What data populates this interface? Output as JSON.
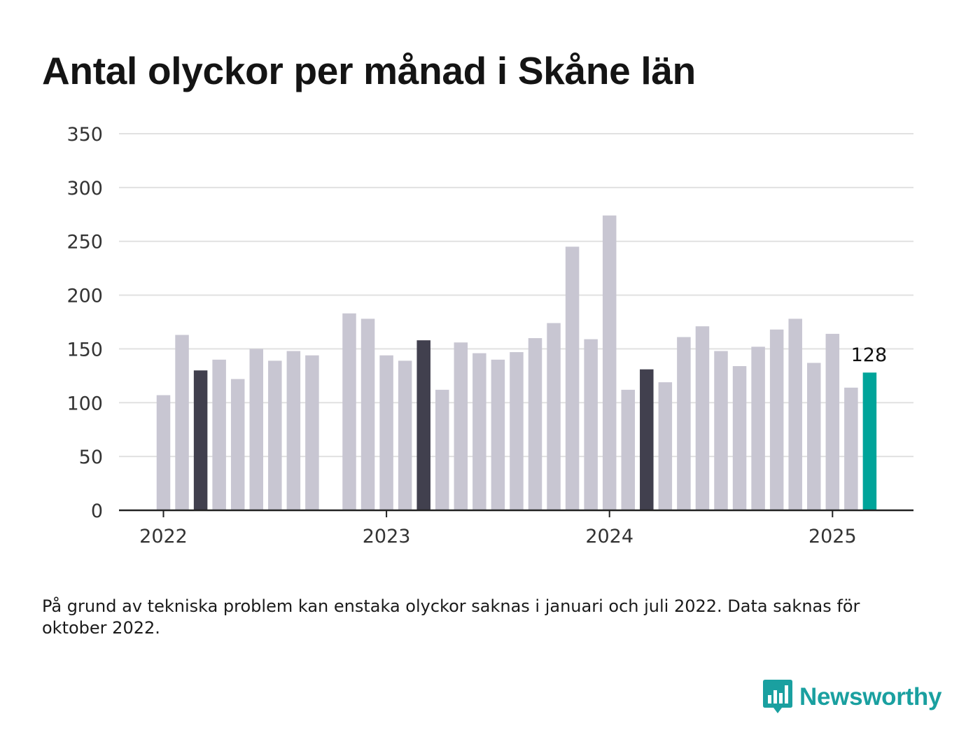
{
  "title": "Antal olyckor per månad i Skåne län",
  "footnote": "På grund av tekniska problem kan enstaka olyckor saknas i januari och juli 2022. Data saknas för oktober 2022.",
  "brand": {
    "name": "Newsworthy",
    "icon": "newsworthy-logo-icon",
    "color": "#1aa0a0"
  },
  "colors": {
    "default": "#c8c6d2",
    "march": "#41404e",
    "highlight": "#00a49a",
    "grid": "#e1e1e1",
    "axis": "#222222"
  },
  "chart_data": {
    "type": "bar",
    "title": "Antal olyckor per månad i Skåne län",
    "xlabel": "",
    "ylabel": "",
    "ylim": [
      0,
      350
    ],
    "yticks": [
      0,
      50,
      100,
      150,
      200,
      250,
      300,
      350
    ],
    "xticks": [
      {
        "label": "2022",
        "x": "2022-01"
      },
      {
        "label": "2023",
        "x": "2023-01"
      },
      {
        "label": "2024",
        "x": "2024-01"
      },
      {
        "label": "2025",
        "x": "2025-01"
      }
    ],
    "grid": true,
    "categories": [
      "2022-01",
      "2022-02",
      "2022-03",
      "2022-04",
      "2022-05",
      "2022-06",
      "2022-07",
      "2022-08",
      "2022-09",
      "2022-10",
      "2022-11",
      "2022-12",
      "2023-01",
      "2023-02",
      "2023-03",
      "2023-04",
      "2023-05",
      "2023-06",
      "2023-07",
      "2023-08",
      "2023-09",
      "2023-10",
      "2023-11",
      "2023-12",
      "2024-01",
      "2024-02",
      "2024-03",
      "2024-04",
      "2024-05",
      "2024-06",
      "2024-07",
      "2024-08",
      "2024-09",
      "2024-10",
      "2024-11",
      "2024-12",
      "2025-01",
      "2025-02",
      "2025-03"
    ],
    "values": [
      107,
      163,
      130,
      140,
      122,
      150,
      139,
      148,
      144,
      null,
      183,
      178,
      144,
      139,
      158,
      112,
      156,
      146,
      140,
      147,
      160,
      174,
      245,
      159,
      274,
      112,
      131,
      119,
      161,
      171,
      148,
      134,
      152,
      168,
      178,
      137,
      164,
      114,
      128
    ],
    "highlighted_months": [
      "2022-03",
      "2023-03",
      "2024-03"
    ],
    "latest": {
      "x": "2025-03",
      "value": 128,
      "label": "128"
    }
  }
}
